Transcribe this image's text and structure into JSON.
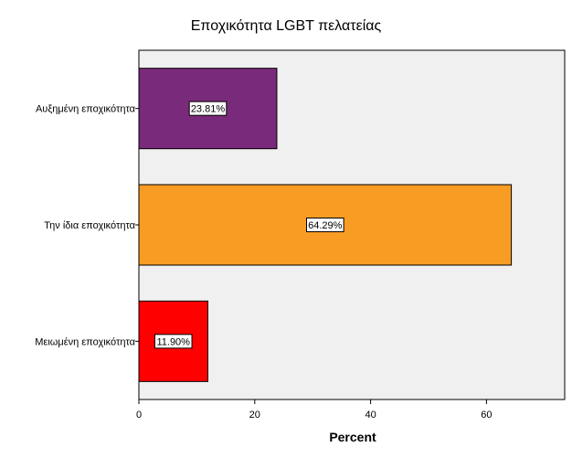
{
  "chart_data": {
    "type": "bar",
    "orientation": "horizontal",
    "title": "Εποχικότητα LGBT πελατείας",
    "xlabel": "Percent",
    "ylabel": "",
    "categories": [
      "Αυξημένη εποχικότητα",
      "Την ίδια εποχικότητα",
      "Μειωμένη εποχικότητα"
    ],
    "values": [
      23.81,
      64.29,
      11.9
    ],
    "data_labels": [
      "23.81%",
      "64.29%",
      "11.90%"
    ],
    "colors": [
      "#7a2a7a",
      "#f99c24",
      "#ff0000"
    ],
    "xlim": [
      0,
      73.5
    ],
    "xticks": [
      0,
      20,
      40,
      60
    ],
    "grid": false,
    "legend": "none",
    "plot_background": "#f0f0f0"
  }
}
